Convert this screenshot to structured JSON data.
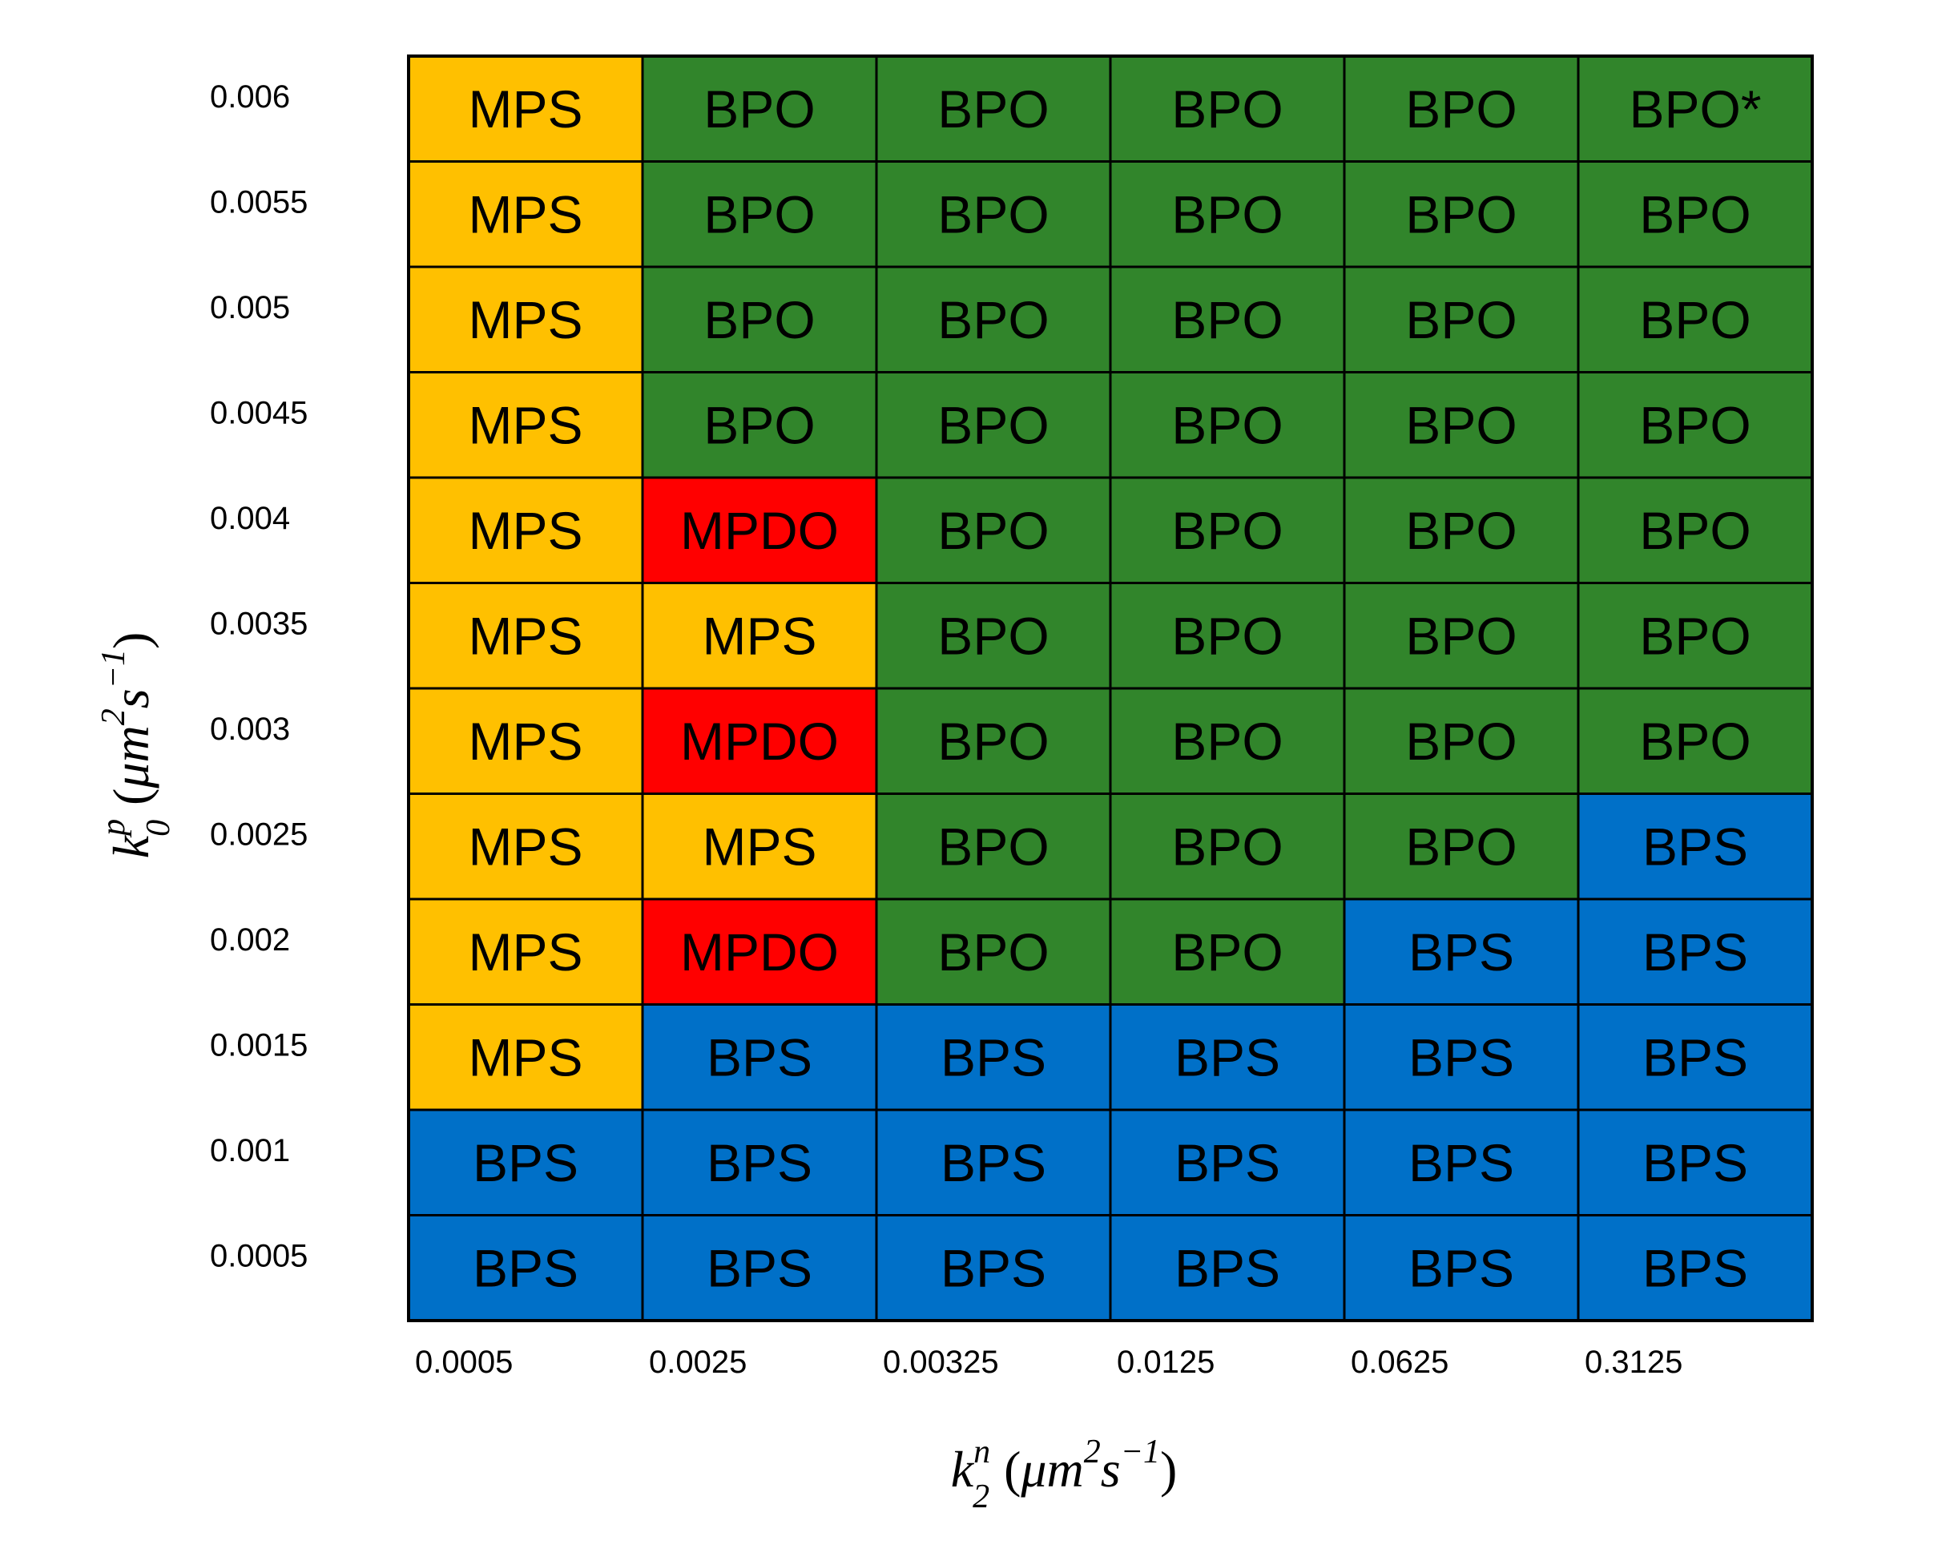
{
  "chart_data": {
    "type": "table",
    "title": "",
    "x_axis": {
      "label": {
        "base": "k",
        "sub": "2",
        "sup": "n",
        "units": [
          "μm",
          "2",
          "s",
          "−1"
        ]
      },
      "ticks": [
        "0.0005",
        "0.0025",
        "0.00325",
        "0.0125",
        "0.0625",
        "0.3125"
      ]
    },
    "y_axis": {
      "label": {
        "base": "k",
        "sub": "0",
        "sup": "p",
        "units": [
          "μm",
          "2",
          "s",
          "−1"
        ]
      },
      "ticks": [
        "0.006",
        "0.0055",
        "0.005",
        "0.0045",
        "0.004",
        "0.0035",
        "0.003",
        "0.0025",
        "0.002",
        "0.0015",
        "0.001",
        "0.0005"
      ]
    },
    "grid": true,
    "category_colors": {
      "MPS": "#FFC000",
      "BPO": "#31852B",
      "MPDO": "#FF0000",
      "BPS": "#0070C8"
    },
    "border_color": "#000000",
    "rows": [
      [
        "MPS",
        "BPO",
        "BPO",
        "BPO",
        "BPO",
        "BPO*"
      ],
      [
        "MPS",
        "BPO",
        "BPO",
        "BPO",
        "BPO",
        "BPO"
      ],
      [
        "MPS",
        "BPO",
        "BPO",
        "BPO",
        "BPO",
        "BPO"
      ],
      [
        "MPS",
        "BPO",
        "BPO",
        "BPO",
        "BPO",
        "BPO"
      ],
      [
        "MPS",
        "MPDO",
        "BPO",
        "BPO",
        "BPO",
        "BPO"
      ],
      [
        "MPS",
        "MPS",
        "BPO",
        "BPO",
        "BPO",
        "BPO"
      ],
      [
        "MPS",
        "MPDO",
        "BPO",
        "BPO",
        "BPO",
        "BPO"
      ],
      [
        "MPS",
        "MPS",
        "BPO",
        "BPO",
        "BPO",
        "BPS"
      ],
      [
        "MPS",
        "MPDO",
        "BPO",
        "BPO",
        "BPS",
        "BPS"
      ],
      [
        "MPS",
        "BPS",
        "BPS",
        "BPS",
        "BPS",
        "BPS"
      ],
      [
        "BPS",
        "BPS",
        "BPS",
        "BPS",
        "BPS",
        "BPS"
      ],
      [
        "BPS",
        "BPS",
        "BPS",
        "BPS",
        "BPS",
        "BPS"
      ]
    ]
  }
}
